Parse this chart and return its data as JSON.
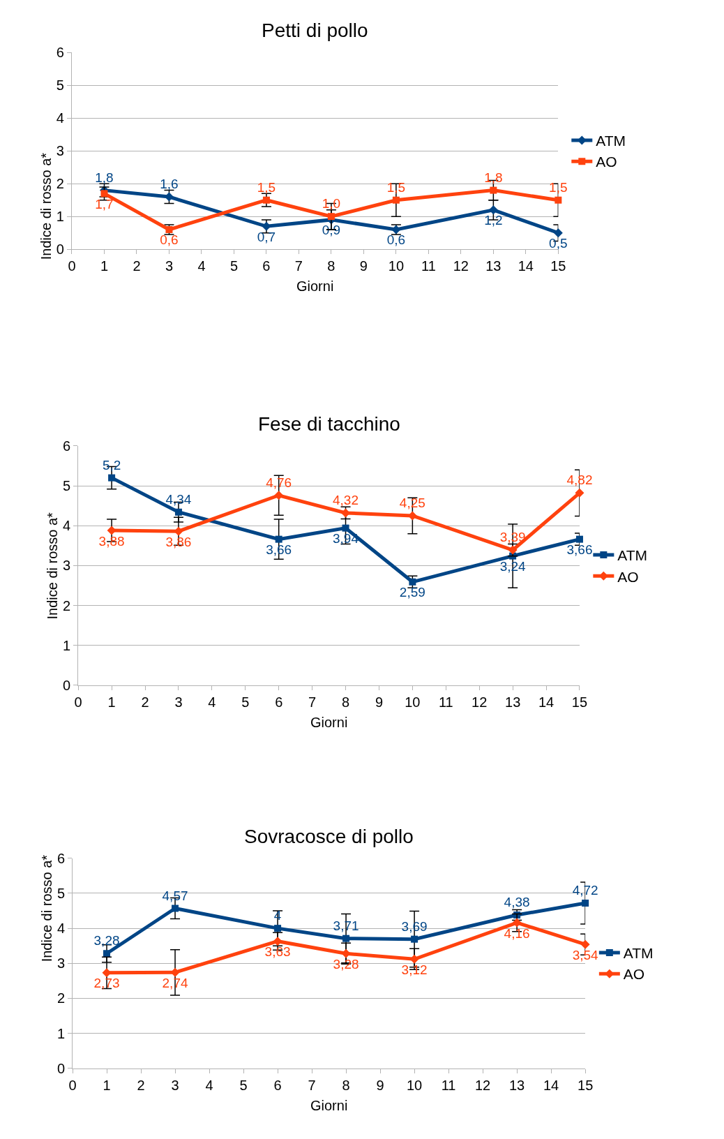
{
  "chart_data": [
    {
      "type": "line",
      "title": "Petti di pollo",
      "xlabel": "Giorni",
      "ylabel": "Indice di rosso a*",
      "xlim": [
        0,
        15
      ],
      "xticks": [
        0,
        1,
        2,
        3,
        4,
        5,
        6,
        7,
        8,
        9,
        10,
        11,
        12,
        13,
        14,
        15
      ],
      "ylim": [
        0,
        6
      ],
      "yticks": [
        0,
        1,
        2,
        3,
        4,
        5,
        6
      ],
      "grid": "y",
      "legend": "right",
      "x": [
        1,
        3,
        6,
        8,
        10,
        13,
        15
      ],
      "series": [
        {
          "name": "ATM",
          "color": "#004586",
          "marker": "diamond",
          "values": [
            1.8,
            1.6,
            0.7,
            0.9,
            0.6,
            1.2,
            0.5
          ],
          "errors": [
            0.2,
            0.2,
            0.2,
            0.3,
            0.15,
            0.3,
            0.25
          ],
          "value_labels": [
            "1,8",
            "1,6",
            "0,7",
            "0,9",
            "0,6",
            "1,2",
            "0,5"
          ]
        },
        {
          "name": "AO",
          "color": "#ff420e",
          "marker": "square",
          "values": [
            1.7,
            0.6,
            1.5,
            1.0,
            1.5,
            1.8,
            1.5
          ],
          "errors": [
            0.2,
            0.15,
            0.2,
            0.4,
            0.5,
            0.3,
            0.5
          ],
          "value_labels": [
            "1,7",
            "0,6",
            "1,5",
            "1,0",
            "1,5",
            "1,8",
            "1,5"
          ]
        }
      ]
    },
    {
      "type": "line",
      "title": "Fese di tacchino",
      "xlabel": "Giorni",
      "ylabel": "Indice di rosso a*",
      "xlim": [
        0,
        15
      ],
      "xticks": [
        0,
        1,
        2,
        3,
        4,
        5,
        6,
        7,
        8,
        9,
        10,
        11,
        12,
        13,
        14,
        15
      ],
      "ylim": [
        0,
        6
      ],
      "yticks": [
        0,
        1,
        2,
        3,
        4,
        5,
        6
      ],
      "grid": "y",
      "legend": "right",
      "x": [
        1,
        3,
        6,
        8,
        10,
        13,
        15
      ],
      "series": [
        {
          "name": "ATM",
          "color": "#004586",
          "marker": "square",
          "values": [
            5.2,
            4.34,
            3.66,
            3.94,
            2.59,
            3.24,
            3.66
          ],
          "errors": [
            0.28,
            0.25,
            0.5,
            0.4,
            0.15,
            0.8,
            0.15
          ],
          "value_labels": [
            "5,2",
            "4,34",
            "3,66",
            "3,94",
            "2,59",
            "3,24",
            "3,66"
          ]
        },
        {
          "name": "AO",
          "color": "#ff420e",
          "marker": "diamond",
          "values": [
            3.88,
            3.86,
            4.76,
            4.32,
            4.25,
            3.39,
            4.82
          ],
          "errors": [
            0.28,
            0.35,
            0.5,
            0.15,
            0.45,
            0.15,
            0.58
          ],
          "value_labels": [
            "3,88",
            "3,86",
            "4,76",
            "4,32",
            "4,25",
            "3,39",
            "4,82"
          ]
        }
      ]
    },
    {
      "type": "line",
      "title": "Sovracosce di pollo",
      "xlabel": "Giorni",
      "ylabel": "Indice di rosso a*",
      "xlim": [
        0,
        15
      ],
      "xticks": [
        0,
        1,
        2,
        3,
        4,
        5,
        6,
        7,
        8,
        9,
        10,
        11,
        12,
        13,
        14,
        15
      ],
      "ylim": [
        0,
        6
      ],
      "yticks": [
        0,
        1,
        2,
        3,
        4,
        5,
        6
      ],
      "grid": "y",
      "legend": "right",
      "x": [
        1,
        3,
        6,
        8,
        10,
        13,
        15
      ],
      "series": [
        {
          "name": "ATM",
          "color": "#004586",
          "marker": "square",
          "values": [
            3.28,
            4.57,
            4,
            3.71,
            3.69,
            4.38,
            4.72
          ],
          "errors": [
            0.25,
            0.3,
            0.5,
            0.7,
            0.8,
            0.15,
            0.6
          ],
          "value_labels": [
            "3,28",
            "4,57",
            "4",
            "3,71",
            "3,69",
            "4,38",
            "4,72"
          ]
        },
        {
          "name": "AO",
          "color": "#ff420e",
          "marker": "diamond",
          "values": [
            2.73,
            2.74,
            3.63,
            3.28,
            3.12,
            4.16,
            3.54
          ],
          "errors": [
            0.45,
            0.65,
            0.25,
            0.3,
            0.3,
            0.25,
            0.3
          ],
          "value_labels": [
            "2,73",
            "2,74",
            "3,63",
            "3,28",
            "3,12",
            "4,16",
            "3,54"
          ]
        }
      ]
    }
  ]
}
